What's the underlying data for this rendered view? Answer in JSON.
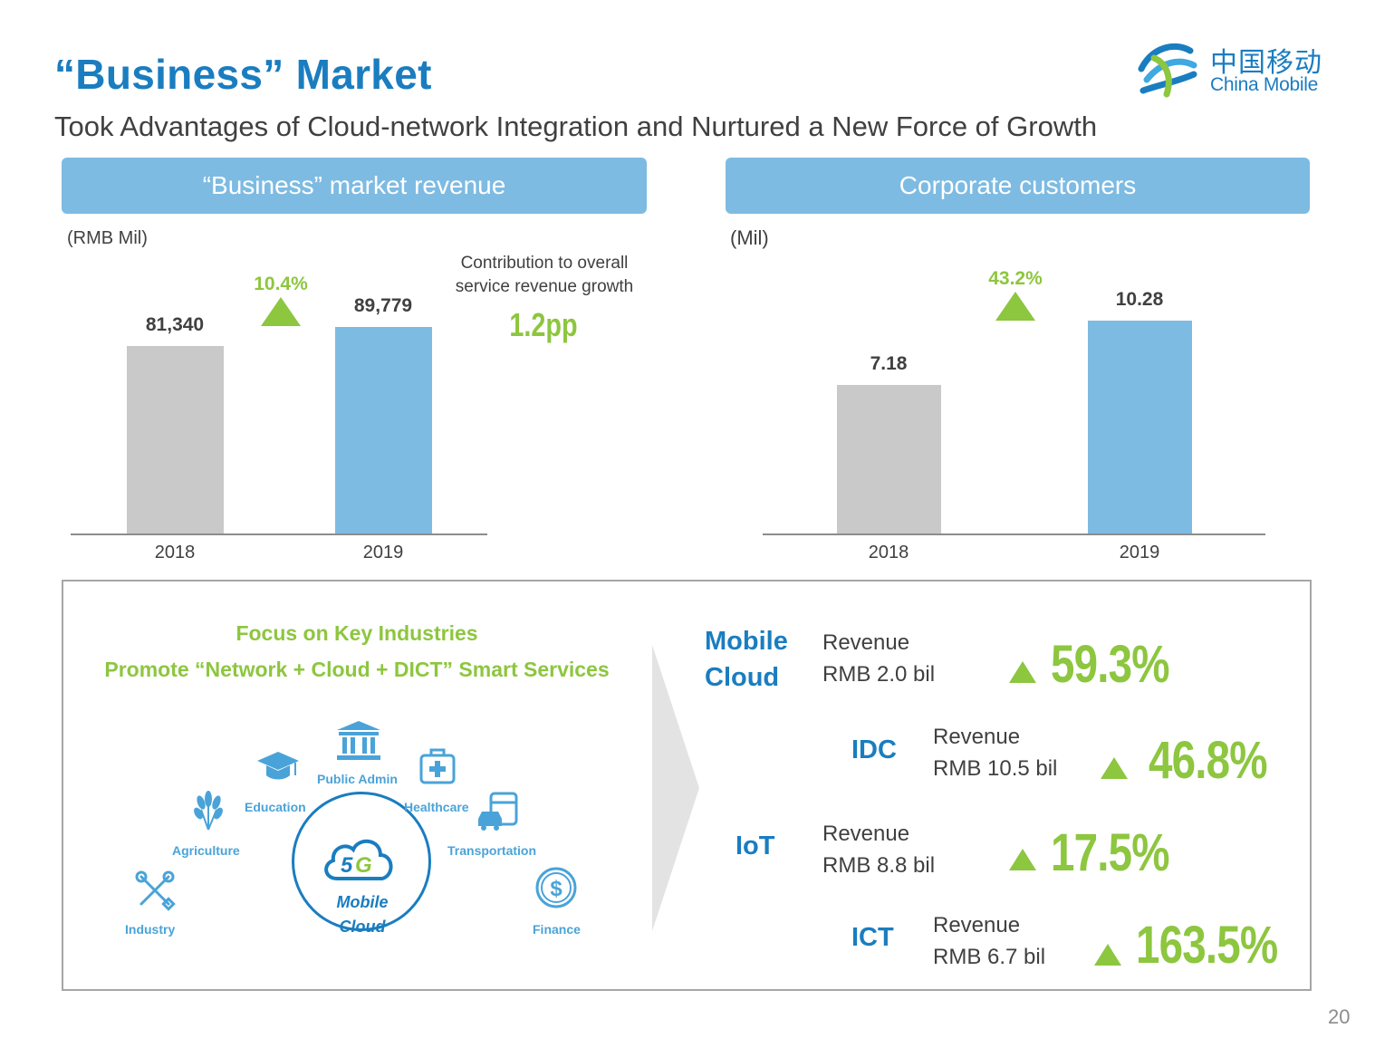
{
  "title": "“Business” Market",
  "subtitle": "Took Advantages of Cloud-network Integration and Nurtured a New Force of Growth",
  "logo": {
    "cn": "中国移动",
    "en": "China Mobile"
  },
  "colors": {
    "accent_blue": "#1a7dc0",
    "header_blue": "#7dbbe2",
    "bar_grey": "#c9c9c9",
    "bar_blue": "#7dbbe2",
    "growth_green": "#8dc63f"
  },
  "revenue_panel": {
    "header": "“Business” market revenue",
    "unit": "(RMB Mil)",
    "growth": "10.4%",
    "contribution_label": "Contribution to overall service revenue growth",
    "contribution_value": "1.2pp"
  },
  "customers_panel": {
    "header": "Corporate customers",
    "unit": "(Mil)",
    "growth": "43.2%"
  },
  "chart_data": [
    {
      "type": "bar",
      "title": "“Business” market revenue",
      "ylabel": "(RMB Mil)",
      "categories": [
        "2018",
        "2019"
      ],
      "values": [
        81340,
        89779
      ],
      "labels": [
        "81,340",
        "89,779"
      ],
      "colors": [
        "#c9c9c9",
        "#7dbbe2"
      ],
      "annotation": "10.4%",
      "grid": false
    },
    {
      "type": "bar",
      "title": "Corporate customers",
      "ylabel": "(Mil)",
      "categories": [
        "2018",
        "2019"
      ],
      "values": [
        7.18,
        10.28
      ],
      "labels": [
        "7.18",
        "10.28"
      ],
      "colors": [
        "#c9c9c9",
        "#7dbbe2"
      ],
      "annotation": "43.2%",
      "grid": false
    }
  ],
  "focus": {
    "line1": "Focus on Key Industries",
    "line2": "Promote “Network + Cloud + DICT” Smart Services",
    "center_icon": "5g-cloud-icon",
    "center_label_1": "Mobile",
    "center_label_2": "Cloud",
    "industries": [
      {
        "label": "Public Admin",
        "icon": "government-building-icon"
      },
      {
        "label": "Education",
        "icon": "graduation-cap-icon"
      },
      {
        "label": "Healthcare",
        "icon": "medical-kit-icon"
      },
      {
        "label": "Agriculture",
        "icon": "wheat-icon"
      },
      {
        "label": "Transportation",
        "icon": "bus-car-icon"
      },
      {
        "label": "Industry",
        "icon": "tools-icon"
      },
      {
        "label": "Finance",
        "icon": "dollar-coin-icon"
      }
    ]
  },
  "segments": [
    {
      "name_1": "Mobile",
      "name_2": "Cloud",
      "rev_label": "Revenue",
      "rev_value": "RMB 2.0 bil",
      "growth": "59.3%"
    },
    {
      "name_1": "IDC",
      "name_2": "",
      "rev_label": "Revenue",
      "rev_value": "RMB 10.5 bil",
      "growth": "46.8%"
    },
    {
      "name_1": "IoT",
      "name_2": "",
      "rev_label": "Revenue",
      "rev_value": "RMB 8.8 bil",
      "growth": "17.5%"
    },
    {
      "name_1": "ICT",
      "name_2": "",
      "rev_label": "Revenue",
      "rev_value": "RMB 6.7 bil",
      "growth": "163.5%"
    }
  ],
  "page_number": "20"
}
